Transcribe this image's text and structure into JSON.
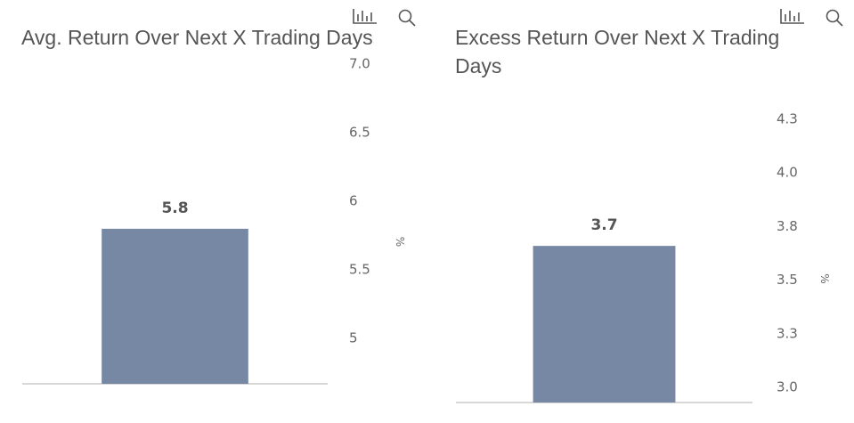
{
  "chart_data": [
    {
      "type": "bar",
      "title": "Avg. Return Over Next X Trading Days",
      "categories": [
        null
      ],
      "values": [
        5.8
      ],
      "color": "#7688a3",
      "ylim": [
        4.67,
        7.0
      ],
      "yticks": [
        5.0,
        5.5,
        6.0,
        6.5,
        {
          "value": 7,
          "label": "7.0"
        }
      ],
      "y_label": "%"
    },
    {
      "type": "bar",
      "title": "Excess Return Over Next X Trading Days",
      "categories": [
        null
      ],
      "values": [
        3.66
      ],
      "value_labels": [
        "3.7"
      ],
      "color": "#7688a3",
      "ylim": [
        2.93,
        4.25
      ],
      "yticks": [
        {
          "value": 3,
          "label": "3.0"
        },
        {
          "value": 3.25,
          "label": "3.3"
        },
        3.5,
        {
          "value": 3.75,
          "label": "3.8"
        },
        {
          "value": 4,
          "label": "4.0"
        },
        {
          "value": 4.25,
          "label": "4.3"
        }
      ],
      "y_label": "%"
    }
  ]
}
